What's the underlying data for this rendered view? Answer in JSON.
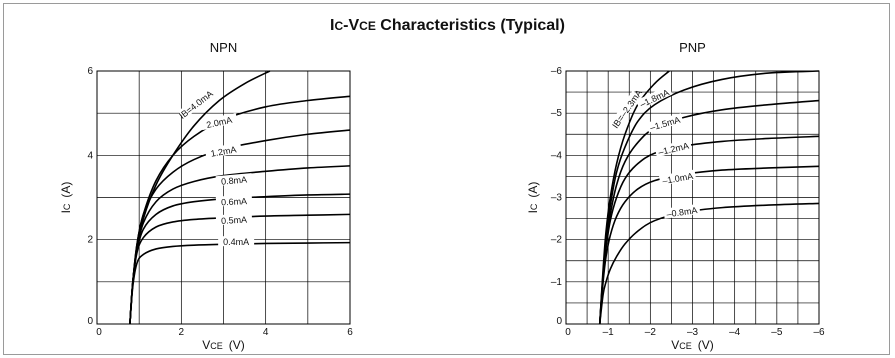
{
  "title": {
    "main": "I",
    "sub1": "C",
    "mid": "-V",
    "sub2": "CE",
    "rest": " Characteristics (Typical)"
  },
  "colors": {
    "line": "#000000",
    "grid": "#000000",
    "frame": "#9a9a9a"
  },
  "chart_data": [
    {
      "type": "line",
      "title": "NPN",
      "xlabel": {
        "main": "V",
        "sub": "CE",
        "unit": "(V)"
      },
      "ylabel": {
        "main": "I",
        "sub": "C",
        "unit": "(A)"
      },
      "xlim": [
        0,
        6
      ],
      "ylim": [
        0,
        6
      ],
      "x_ticks": [
        {
          "v": 0,
          "label": "0"
        },
        {
          "v": 2,
          "label": "2"
        },
        {
          "v": 4,
          "label": "4"
        },
        {
          "v": 6,
          "label": "6"
        }
      ],
      "y_ticks": [
        {
          "v": 0,
          "label": "0"
        },
        {
          "v": 2,
          "label": "2"
        },
        {
          "v": 4,
          "label": "4"
        },
        {
          "v": 6,
          "label": "6"
        }
      ],
      "x_grid_step": 1,
      "y_grid_step": 1,
      "grid": true,
      "series": [
        {
          "name": "IB=4.0mA",
          "label_at": [
            2.35,
            5.2
          ],
          "label_angle": -38,
          "points": [
            [
              0.78,
              0
            ],
            [
              0.85,
              1.0
            ],
            [
              0.95,
              1.8
            ],
            [
              1.1,
              2.5
            ],
            [
              1.4,
              3.3
            ],
            [
              1.8,
              4.0
            ],
            [
              2.3,
              4.7
            ],
            [
              2.9,
              5.3
            ],
            [
              3.5,
              5.7
            ],
            [
              4.1,
              6.0
            ]
          ]
        },
        {
          "name": "2.0mA",
          "label_at": [
            2.9,
            4.78
          ],
          "label_angle": -12,
          "points": [
            [
              0.78,
              0
            ],
            [
              0.85,
              1.0
            ],
            [
              0.95,
              1.9
            ],
            [
              1.1,
              2.6
            ],
            [
              1.4,
              3.4
            ],
            [
              1.8,
              4.0
            ],
            [
              2.3,
              4.45
            ],
            [
              3.0,
              4.85
            ],
            [
              4.0,
              5.15
            ],
            [
              5.0,
              5.3
            ],
            [
              6.0,
              5.4
            ]
          ]
        },
        {
          "name": "1.2mA",
          "label_at": [
            3.0,
            4.09
          ],
          "label_angle": -10,
          "points": [
            [
              0.78,
              0
            ],
            [
              0.85,
              1.0
            ],
            [
              0.95,
              1.9
            ],
            [
              1.1,
              2.6
            ],
            [
              1.4,
              3.2
            ],
            [
              1.8,
              3.6
            ],
            [
              2.3,
              3.9
            ],
            [
              3.0,
              4.15
            ],
            [
              4.0,
              4.35
            ],
            [
              5.0,
              4.5
            ],
            [
              6.0,
              4.6
            ]
          ]
        },
        {
          "name": "0.8mA",
          "label_at": [
            3.25,
            3.4
          ],
          "label_angle": -5,
          "points": [
            [
              0.78,
              0
            ],
            [
              0.85,
              1.0
            ],
            [
              0.95,
              1.8
            ],
            [
              1.1,
              2.4
            ],
            [
              1.4,
              2.9
            ],
            [
              1.8,
              3.2
            ],
            [
              2.3,
              3.38
            ],
            [
              3.0,
              3.52
            ],
            [
              4.0,
              3.62
            ],
            [
              5.0,
              3.7
            ],
            [
              6.0,
              3.75
            ]
          ]
        },
        {
          "name": "0.6mA",
          "label_at": [
            3.25,
            2.9
          ],
          "label_angle": -3,
          "points": [
            [
              0.78,
              0
            ],
            [
              0.85,
              1.0
            ],
            [
              0.95,
              1.75
            ],
            [
              1.1,
              2.25
            ],
            [
              1.4,
              2.6
            ],
            [
              1.8,
              2.8
            ],
            [
              2.3,
              2.9
            ],
            [
              3.0,
              2.97
            ],
            [
              4.0,
              3.02
            ],
            [
              5.0,
              3.06
            ],
            [
              6.0,
              3.08
            ]
          ]
        },
        {
          "name": "0.5mA",
          "label_at": [
            3.25,
            2.46
          ],
          "label_angle": -3,
          "points": [
            [
              0.78,
              0
            ],
            [
              0.85,
              1.0
            ],
            [
              0.95,
              1.7
            ],
            [
              1.1,
              2.05
            ],
            [
              1.4,
              2.3
            ],
            [
              1.8,
              2.42
            ],
            [
              2.3,
              2.48
            ],
            [
              3.0,
              2.52
            ],
            [
              4.0,
              2.56
            ],
            [
              5.0,
              2.58
            ],
            [
              6.0,
              2.6
            ]
          ]
        },
        {
          "name": "0.4mA",
          "label_at": [
            3.3,
            1.94
          ],
          "label_angle": 0,
          "points": [
            [
              0.78,
              0
            ],
            [
              0.85,
              0.9
            ],
            [
              0.95,
              1.45
            ],
            [
              1.1,
              1.65
            ],
            [
              1.4,
              1.78
            ],
            [
              1.8,
              1.84
            ],
            [
              2.3,
              1.87
            ],
            [
              3.0,
              1.89
            ],
            [
              4.0,
              1.91
            ],
            [
              5.0,
              1.92
            ],
            [
              6.0,
              1.93
            ]
          ]
        }
      ]
    },
    {
      "type": "line",
      "title": "PNP",
      "xlabel": {
        "main": "V",
        "sub": "CE",
        "unit": "(V)"
      },
      "ylabel": {
        "main": "I",
        "sub": "C",
        "unit": "(A)"
      },
      "xlim": [
        0,
        -6
      ],
      "ylim": [
        0,
        -6
      ],
      "x_ticks": [
        {
          "v": 0,
          "label": "0"
        },
        {
          "v": -1,
          "label": "–1"
        },
        {
          "v": -2,
          "label": "–2"
        },
        {
          "v": -3,
          "label": "–3"
        },
        {
          "v": -4,
          "label": "–4"
        },
        {
          "v": -5,
          "label": "–5"
        },
        {
          "v": -6,
          "label": "–6"
        }
      ],
      "y_ticks": [
        {
          "v": 0,
          "label": "0"
        },
        {
          "v": -1,
          "label": "–1"
        },
        {
          "v": -2,
          "label": "–2"
        },
        {
          "v": -3,
          "label": "–3"
        },
        {
          "v": -4,
          "label": "–4"
        },
        {
          "v": -5,
          "label": "–5"
        },
        {
          "v": -6,
          "label": "–6"
        }
      ],
      "x_grid_step": -0.5,
      "y_grid_step": -0.5,
      "grid": true,
      "series": [
        {
          "name": "IB=–2.3mA",
          "label_at": [
            -1.45,
            -5.1
          ],
          "label_angle": -55,
          "points": [
            [
              -0.8,
              0
            ],
            [
              -0.88,
              -1.3
            ],
            [
              -0.95,
              -2.2
            ],
            [
              -1.05,
              -3.0
            ],
            [
              -1.2,
              -3.8
            ],
            [
              -1.4,
              -4.5
            ],
            [
              -1.7,
              -5.2
            ],
            [
              -2.1,
              -5.7
            ],
            [
              -2.45,
              -6.0
            ]
          ]
        },
        {
          "name": "–1.8mA",
          "label_at": [
            -2.1,
            -5.35
          ],
          "label_angle": -25,
          "points": [
            [
              -0.8,
              0
            ],
            [
              -0.88,
              -1.2
            ],
            [
              -0.95,
              -2.0
            ],
            [
              -1.05,
              -2.8
            ],
            [
              -1.2,
              -3.6
            ],
            [
              -1.4,
              -4.2
            ],
            [
              -1.7,
              -4.8
            ],
            [
              -2.1,
              -5.2
            ],
            [
              -2.8,
              -5.55
            ],
            [
              -3.7,
              -5.8
            ],
            [
              -4.8,
              -5.95
            ],
            [
              -6.0,
              -6.0
            ]
          ]
        },
        {
          "name": "–1.5mA",
          "label_at": [
            -2.35,
            -4.75
          ],
          "label_angle": -16,
          "points": [
            [
              -0.8,
              0
            ],
            [
              -0.88,
              -1.15
            ],
            [
              -0.95,
              -1.9
            ],
            [
              -1.05,
              -2.6
            ],
            [
              -1.2,
              -3.3
            ],
            [
              -1.4,
              -3.85
            ],
            [
              -1.7,
              -4.3
            ],
            [
              -2.1,
              -4.65
            ],
            [
              -2.8,
              -4.9
            ],
            [
              -3.7,
              -5.08
            ],
            [
              -4.8,
              -5.2
            ],
            [
              -6.0,
              -5.3
            ]
          ]
        },
        {
          "name": "–1.2mA",
          "label_at": [
            -2.55,
            -4.15
          ],
          "label_angle": -13,
          "points": [
            [
              -0.8,
              0
            ],
            [
              -0.88,
              -1.1
            ],
            [
              -0.95,
              -1.8
            ],
            [
              -1.05,
              -2.45
            ],
            [
              -1.2,
              -3.0
            ],
            [
              -1.4,
              -3.45
            ],
            [
              -1.7,
              -3.8
            ],
            [
              -2.1,
              -4.05
            ],
            [
              -2.8,
              -4.22
            ],
            [
              -3.7,
              -4.33
            ],
            [
              -4.8,
              -4.4
            ],
            [
              -6.0,
              -4.45
            ]
          ]
        },
        {
          "name": "–1.0mA",
          "label_at": [
            -2.65,
            -3.45
          ],
          "label_angle": -10,
          "points": [
            [
              -0.8,
              0
            ],
            [
              -0.88,
              -1.0
            ],
            [
              -0.95,
              -1.6
            ],
            [
              -1.05,
              -2.1
            ],
            [
              -1.2,
              -2.55
            ],
            [
              -1.4,
              -2.9
            ],
            [
              -1.7,
              -3.2
            ],
            [
              -2.1,
              -3.4
            ],
            [
              -2.8,
              -3.55
            ],
            [
              -3.7,
              -3.65
            ],
            [
              -4.8,
              -3.7
            ],
            [
              -6.0,
              -3.74
            ]
          ]
        },
        {
          "name": "–0.8mA",
          "label_at": [
            -2.75,
            -2.65
          ],
          "label_angle": -8,
          "points": [
            [
              -0.8,
              0
            ],
            [
              -0.88,
              -0.7
            ],
            [
              -0.95,
              -1.0
            ],
            [
              -1.05,
              -1.3
            ],
            [
              -1.2,
              -1.6
            ],
            [
              -1.4,
              -1.9
            ],
            [
              -1.7,
              -2.2
            ],
            [
              -2.1,
              -2.45
            ],
            [
              -2.8,
              -2.65
            ],
            [
              -3.7,
              -2.76
            ],
            [
              -4.8,
              -2.82
            ],
            [
              -6.0,
              -2.86
            ]
          ]
        }
      ]
    }
  ]
}
